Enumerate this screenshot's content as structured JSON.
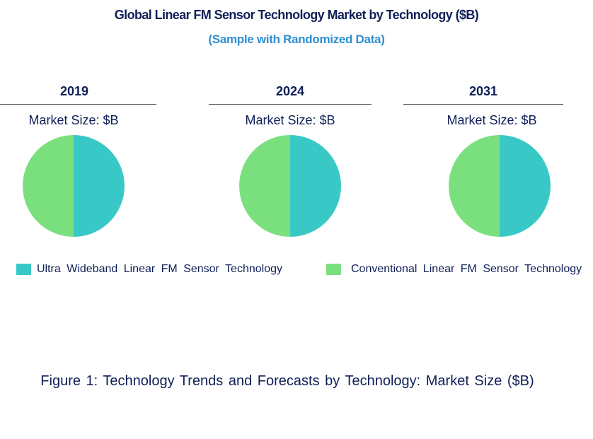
{
  "chart_data": {
    "type": "pie",
    "title": "Global Linear FM Sensor Technology Market by Technology ($B)",
    "subtitle": "(Sample with Randomized Data)",
    "caption": "Figure 1: Technology Trends and Forecasts by Technology: Market Size ($B)",
    "series_names": [
      "Ultra Wideband Linear FM Sensor Technology",
      "Conventional Linear FM Sensor Technology"
    ],
    "colors": [
      "#38c9c6",
      "#7ae07e"
    ],
    "legend_position": "bottom",
    "pies": [
      {
        "year": "2019",
        "label": "Market Size: $B",
        "values": [
          50,
          50
        ]
      },
      {
        "year": "2024",
        "label": "Market Size: $B",
        "values": [
          50,
          50
        ]
      },
      {
        "year": "2031",
        "label": "Market Size: $B",
        "values": [
          50,
          50
        ]
      }
    ]
  }
}
